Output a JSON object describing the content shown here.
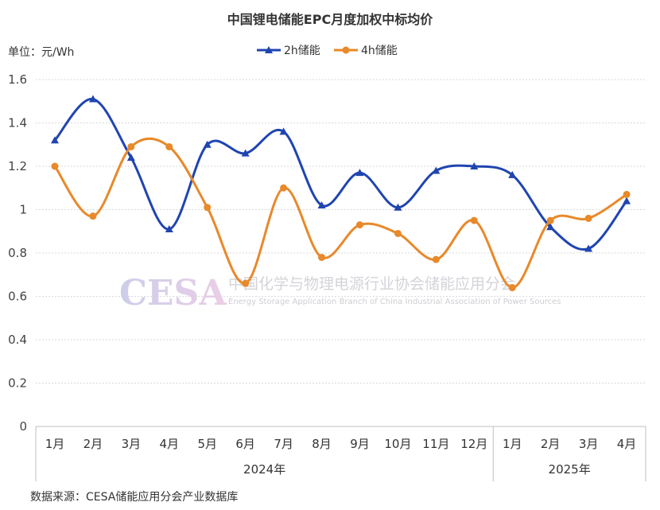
{
  "chart_data": {
    "type": "line",
    "title": "中国锂电储能EPC月度加权中标均价",
    "unit_label": "单位：元/Wh",
    "categories": [
      "1月",
      "2月",
      "3月",
      "4月",
      "5月",
      "6月",
      "7月",
      "8月",
      "9月",
      "10月",
      "11月",
      "12月",
      "1月",
      "2月",
      "3月",
      "4月"
    ],
    "groups": [
      {
        "label": "2024年",
        "count": 12
      },
      {
        "label": "2025年",
        "count": 4
      }
    ],
    "ylim": [
      0,
      1.6
    ],
    "yticks": [
      "0",
      "0.2",
      "0.4",
      "0.6",
      "0.8",
      "1",
      "1.2",
      "1.4",
      "1.6"
    ],
    "grid": true,
    "legend_position": "top-center",
    "series": [
      {
        "name": "2h储能",
        "color": "#1f45b0",
        "marker": "triangle",
        "values": [
          1.32,
          1.51,
          1.24,
          0.91,
          1.3,
          1.26,
          1.36,
          1.02,
          1.17,
          1.01,
          1.18,
          1.2,
          1.16,
          0.92,
          0.82,
          1.04
        ]
      },
      {
        "name": "4h储能",
        "color": "#e8892a",
        "marker": "circle",
        "values": [
          1.2,
          0.97,
          1.29,
          1.29,
          1.01,
          0.66,
          1.1,
          0.78,
          0.93,
          0.89,
          0.77,
          0.95,
          0.64,
          0.95,
          0.96,
          1.07
        ]
      }
    ]
  },
  "watermark": {
    "logo": "CESA",
    "cn": "中国化学与物理电源行业协会储能应用分会",
    "en": "Energy Storage Application Branch of China Industrial Association of Power Sources"
  },
  "source": "数据来源：CESA储能应用分会产业数据库"
}
